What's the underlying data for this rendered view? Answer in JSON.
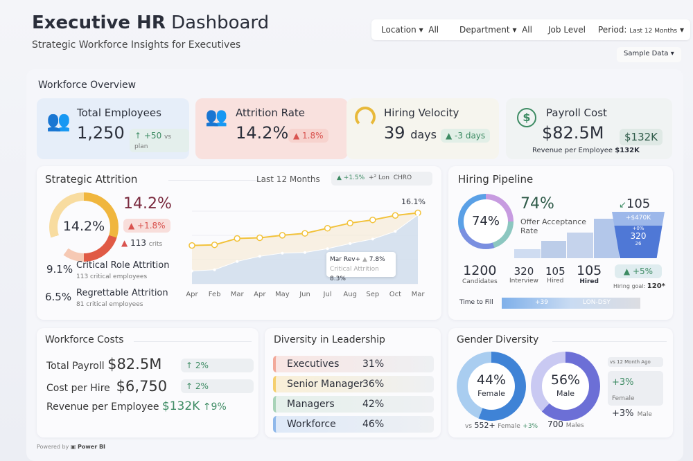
{
  "header": {
    "title_bold": "Executive HR",
    "title_rest": " Dashboard",
    "subtitle": "Strategic Workforce Insights for Executives"
  },
  "filters": [
    {
      "label": "Location",
      "value": "All"
    },
    {
      "label": "Department",
      "value": "All"
    },
    {
      "label": "Job Level",
      "value": ""
    },
    {
      "label": "Period:",
      "value": "Last 12 Months"
    }
  ],
  "sample_data": "Sample Data",
  "overview": {
    "title": "Workforce Overview",
    "kpis": [
      {
        "title": "Total Employees",
        "value": "1,250",
        "delta": "+50",
        "delta_note": "vs plan",
        "icon": "people-icon"
      },
      {
        "title": "Attrition Rate",
        "value": "14.2%",
        "delta": "1.8%",
        "icon": "people-icon"
      },
      {
        "title": "Hiring Velocity",
        "value": "39",
        "unit": "days",
        "delta": "-3 days",
        "icon": "gauge-icon"
      },
      {
        "title": "Payroll Cost",
        "value": "$82.5M",
        "badge": "$132K",
        "note_label": "Revenue per Employee",
        "note_value": "$132K",
        "icon": "dollar-icon"
      }
    ]
  },
  "attrition": {
    "title": "Strategic Attrition",
    "period": "Last 12 Months",
    "chips": [
      "+1.5%",
      "+² Lon",
      "CHRO"
    ],
    "gauge_value": "14.2%",
    "big_value": "14.2%",
    "delta": "+1.8%",
    "crit_count": "113",
    "crit_suffix": "crits",
    "critical": {
      "value": "9.1%",
      "label": "Critical Role Attrition",
      "note": "113 critical employees"
    },
    "regrettable": {
      "value": "6.5%",
      "label": "Regrettable Attrition",
      "note": "81 critical employees"
    },
    "tooltip": {
      "line1": "Mar Rev+",
      "line1_val": "7.8%",
      "line2": "Critical Attrition",
      "line2_val": "8.3%"
    },
    "end_label": "16.1%"
  },
  "chart_data": {
    "type": "line",
    "categories": [
      "Apr",
      "Feb",
      "Mar",
      "Apr",
      "May",
      "Jun",
      "Jul",
      "Aug",
      "Sep",
      "Oct",
      "Mar"
    ],
    "series": [
      {
        "values": [
          11.0,
          11.1,
          12.1,
          12.2,
          12.6,
          12.9,
          13.7,
          14.5,
          15.0,
          15.7,
          16.1
        ],
        "color": "#f2c23a"
      },
      {
        "values": [
          7.0,
          7.2,
          8.5,
          9.3,
          9.8,
          9.9,
          10.5,
          11.3,
          12.0,
          13.2,
          15.8
        ],
        "color": "#ffffff"
      }
    ]
  },
  "pipeline": {
    "title": "Hiring Pipeline",
    "ring_value": "74%",
    "big_value": "74%",
    "label": "Offer Acceptance Rate",
    "funnel_top": "105",
    "funnel_a": "+$470K",
    "funnel_b": "+0%",
    "funnel_c": "320",
    "funnel_d": "26",
    "stages": [
      {
        "value": "1200",
        "label": "Candidates"
      },
      {
        "value": "320",
        "label": "Interview"
      },
      {
        "value": "105",
        "label": "Hired"
      },
      {
        "value": "105",
        "label": "Hired"
      }
    ],
    "delta": "+5%",
    "goal_label": "Hiring goal:",
    "goal_value": "120*",
    "ttf_label": "Time to Fill",
    "ttf_value": "+39",
    "ttf_tail": "LON-DSY"
  },
  "costs": {
    "title": "Workforce Costs",
    "rows": [
      {
        "label": "Total Payroll",
        "value": "$82.5M",
        "delta": "2%"
      },
      {
        "label": "Cost per Hire",
        "value": "$6,750",
        "delta": "2%"
      },
      {
        "label": "Revenue per Employee",
        "value": "$132K",
        "delta": "9%"
      }
    ]
  },
  "leadership": {
    "title": "Diversity in Leadership",
    "rows": [
      {
        "label": "Executives",
        "value": "31%",
        "color": "#f2a99a"
      },
      {
        "label": "Senior Manager",
        "value": "36%",
        "color": "#f5cf6e"
      },
      {
        "label": "Managers",
        "value": "42%",
        "color": "#a8d3b8"
      },
      {
        "label": "Workforce",
        "value": "46%",
        "color": "#8fb8ea"
      }
    ]
  },
  "gender": {
    "title": "Gender Diversity",
    "female": {
      "value": "44%",
      "label": "Female",
      "pct": 44
    },
    "male": {
      "value": "56%",
      "label": "Male",
      "pct": 56
    },
    "vs_label": "vs 12 Month Ago",
    "female_delta": "+3%",
    "female_tag": "Female",
    "male_delta": "+3%",
    "male_tag": "Male",
    "female_note_pre": "vs",
    "female_count": "552+",
    "female_note": "Female",
    "female_note_delta": "+3%",
    "male_count": "700",
    "male_note": "Males"
  },
  "footer": {
    "powered": "Powered by",
    "brand": "Power BI"
  }
}
